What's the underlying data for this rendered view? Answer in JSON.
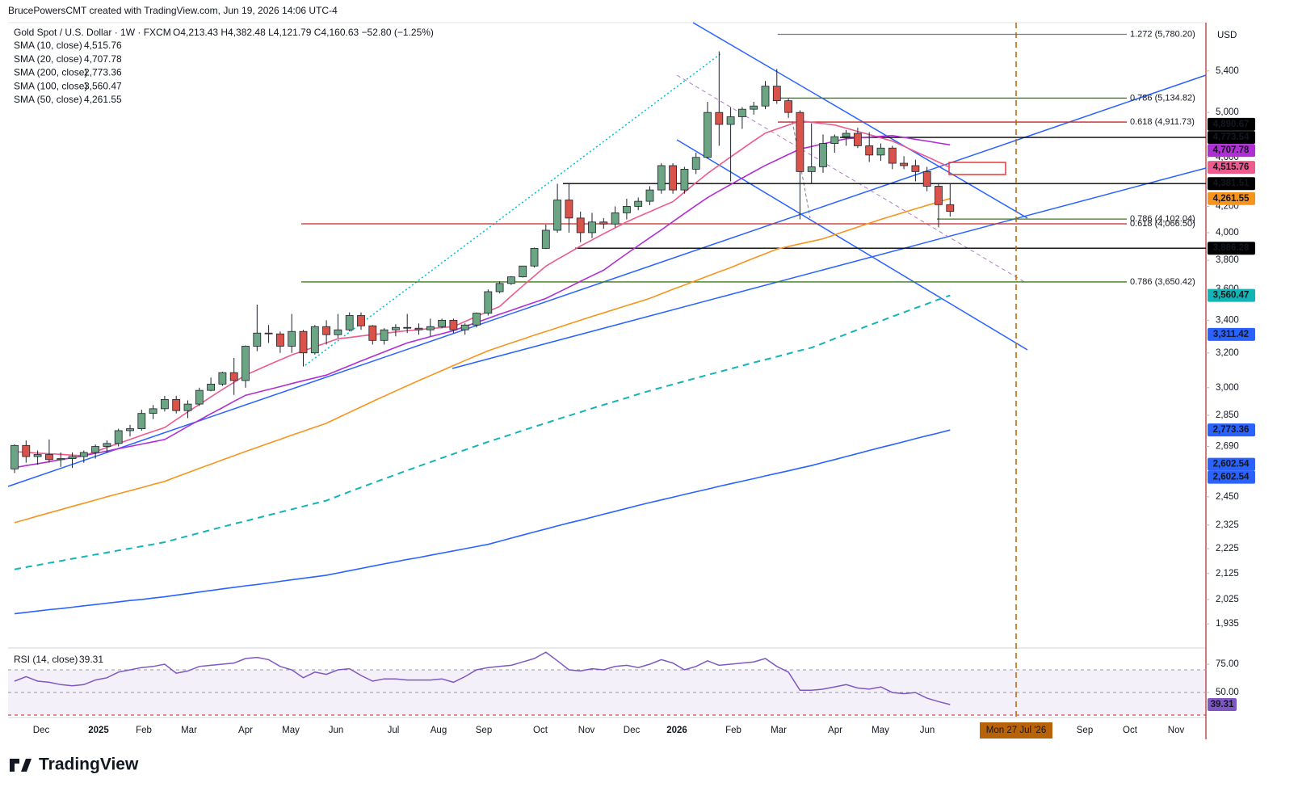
{
  "attribution": "BrucePowersCMT created with TradingView.com, Jun 19, 2026 14:06 UTC-4",
  "logo": "TradingView",
  "chart_data": {
    "type": "candlestick",
    "title": "Gold Spot / U.S. Dollar · 1W · FXCM",
    "ohlc_text": "O4,213.43 H4,382.48 L4,121.79 C4,160.63 −52.80 (−1.25%)",
    "currency": "USD",
    "log_scale": true,
    "up_color": "#6ba583",
    "down_color": "#d9534a",
    "candles": [
      [
        2580,
        2700,
        2560,
        2695
      ],
      [
        2695,
        2720,
        2610,
        2640
      ],
      [
        2640,
        2670,
        2600,
        2650
      ],
      [
        2650,
        2725,
        2610,
        2625
      ],
      [
        2625,
        2660,
        2590,
        2630
      ],
      [
        2630,
        2660,
        2585,
        2640
      ],
      [
        2640,
        2670,
        2610,
        2660
      ],
      [
        2660,
        2700,
        2630,
        2690
      ],
      [
        2690,
        2720,
        2660,
        2705
      ],
      [
        2705,
        2780,
        2690,
        2770
      ],
      [
        2770,
        2800,
        2740,
        2780
      ],
      [
        2780,
        2880,
        2770,
        2860
      ],
      [
        2860,
        2905,
        2830,
        2885
      ],
      [
        2885,
        2955,
        2870,
        2935
      ],
      [
        2935,
        2955,
        2860,
        2875
      ],
      [
        2875,
        2930,
        2835,
        2910
      ],
      [
        2910,
        3000,
        2900,
        2985
      ],
      [
        2985,
        3057,
        2980,
        3020
      ],
      [
        3020,
        3090,
        3010,
        3085
      ],
      [
        3085,
        3170,
        2960,
        3040
      ],
      [
        3040,
        3245,
        3000,
        3240
      ],
      [
        3240,
        3500,
        3210,
        3320
      ],
      [
        3320,
        3370,
        3260,
        3315
      ],
      [
        3315,
        3330,
        3200,
        3240
      ],
      [
        3240,
        3440,
        3200,
        3330
      ],
      [
        3330,
        3340,
        3120,
        3200
      ],
      [
        3200,
        3370,
        3190,
        3360
      ],
      [
        3360,
        3400,
        3250,
        3310
      ],
      [
        3310,
        3440,
        3290,
        3340
      ],
      [
        3340,
        3450,
        3330,
        3430
      ],
      [
        3430,
        3450,
        3340,
        3365
      ],
      [
        3365,
        3370,
        3250,
        3275
      ],
      [
        3275,
        3350,
        3250,
        3340
      ],
      [
        3340,
        3375,
        3300,
        3355
      ],
      [
        3355,
        3440,
        3320,
        3350
      ],
      [
        3350,
        3380,
        3310,
        3340
      ],
      [
        3340,
        3410,
        3300,
        3360
      ],
      [
        3360,
        3410,
        3350,
        3400
      ],
      [
        3400,
        3410,
        3320,
        3340
      ],
      [
        3340,
        3380,
        3310,
        3370
      ],
      [
        3370,
        3450,
        3355,
        3445
      ],
      [
        3445,
        3600,
        3430,
        3585
      ],
      [
        3585,
        3655,
        3575,
        3640
      ],
      [
        3640,
        3690,
        3630,
        3685
      ],
      [
        3685,
        3760,
        3680,
        3760
      ],
      [
        3760,
        3890,
        3750,
        3885
      ],
      [
        3885,
        4060,
        3880,
        4018
      ],
      [
        4018,
        4380,
        4000,
        4250
      ],
      [
        4250,
        4380,
        4000,
        4110
      ],
      [
        4110,
        4160,
        3930,
        4000
      ],
      [
        4000,
        4150,
        3960,
        4080
      ],
      [
        4080,
        4110,
        4030,
        4065
      ],
      [
        4065,
        4200,
        4040,
        4150
      ],
      [
        4150,
        4260,
        4100,
        4200
      ],
      [
        4200,
        4270,
        4170,
        4240
      ],
      [
        4240,
        4360,
        4210,
        4330
      ],
      [
        4330,
        4550,
        4300,
        4530
      ],
      [
        4530,
        4550,
        4300,
        4330
      ],
      [
        4330,
        4520,
        4300,
        4500
      ],
      [
        4500,
        4640,
        4460,
        4600
      ],
      [
        4600,
        5100,
        4590,
        5000
      ],
      [
        5000,
        5600,
        4700,
        4890
      ],
      [
        4890,
        5050,
        4400,
        4960
      ],
      [
        4960,
        5050,
        4850,
        5030
      ],
      [
        5030,
        5100,
        4980,
        5060
      ],
      [
        5060,
        5300,
        5030,
        5250
      ],
      [
        5250,
        5420,
        5080,
        5110
      ],
      [
        5110,
        5130,
        4950,
        5000
      ],
      [
        5000,
        5020,
        4100,
        4480
      ],
      [
        4480,
        4900,
        4380,
        4520
      ],
      [
        4520,
        4800,
        4470,
        4720
      ],
      [
        4720,
        4800,
        4640,
        4780
      ],
      [
        4780,
        4840,
        4700,
        4810
      ],
      [
        4810,
        4860,
        4680,
        4700
      ],
      [
        4700,
        4820,
        4560,
        4620
      ],
      [
        4620,
        4720,
        4570,
        4680
      ],
      [
        4680,
        4700,
        4500,
        4550
      ],
      [
        4550,
        4610,
        4500,
        4530
      ],
      [
        4530,
        4580,
        4400,
        4480
      ],
      [
        4480,
        4520,
        4320,
        4360
      ],
      [
        4360,
        4380,
        4040,
        4213.43
      ],
      [
        4213.43,
        4382.48,
        4121.79,
        4160.63
      ]
    ],
    "ylim": [
      1856,
      5907
    ],
    "yticks": [
      {
        "value": 5400,
        "label": "5,400"
      },
      {
        "value": 5000,
        "label": "5,000"
      },
      {
        "value": 4600,
        "label": "4,600"
      },
      {
        "value": 4200,
        "label": "4,200"
      },
      {
        "value": 4000,
        "label": "4,000"
      },
      {
        "value": 3800,
        "label": "3,800"
      },
      {
        "value": 3600,
        "label": "3,600"
      },
      {
        "value": 3400,
        "label": "3,400"
      },
      {
        "value": 3200,
        "label": "3,200"
      },
      {
        "value": 3000,
        "label": "3,000"
      },
      {
        "value": 2850,
        "label": "2,850"
      },
      {
        "value": 2690,
        "label": "2,690"
      },
      {
        "value": 2450,
        "label": "2,450"
      },
      {
        "value": 2325,
        "label": "2,325"
      },
      {
        "value": 2225,
        "label": "2,225"
      },
      {
        "value": 2125,
        "label": "2,125"
      },
      {
        "value": 2025,
        "label": "2,025"
      },
      {
        "value": 1935,
        "label": "1,935"
      }
    ],
    "series": [
      {
        "name": "SMA (10, close)",
        "color": "#ec5b8c",
        "style": "solid",
        "last_label": "4,515.76",
        "values": [
          2664,
          2661,
          2657,
          2654,
          2651,
          2647,
          2644,
          2664,
          2685,
          2705,
          2725,
          2746,
          2766,
          2786,
          2827,
          2868,
          2908,
          2949,
          2990,
          3030,
          3071,
          3100,
          3130,
          3159,
          3188,
          3212,
          3236,
          3261,
          3285,
          3293,
          3302,
          3310,
          3318,
          3327,
          3335,
          3341,
          3348,
          3354,
          3360,
          3392,
          3424,
          3456,
          3488,
          3556,
          3624,
          3691,
          3759,
          3807,
          3854,
          3902,
          3947,
          3992,
          4036,
          4081,
          4120,
          4159,
          4198,
          4237,
          4313,
          4389,
          4465,
          4534,
          4604,
          4673,
          4743,
          4812,
          4849,
          4885,
          4922,
          4910,
          4897,
          4885,
          4856,
          4827,
          4799,
          4770,
          4741,
          4696,
          4650,
          4605,
          4560,
          4515.76
        ]
      },
      {
        "name": "SMA (20, close)",
        "color": "#b02fd4",
        "style": "solid",
        "last_label": "4,707.78",
        "values": [
          2586,
          2596,
          2605,
          2615,
          2625,
          2634,
          2644,
          2656,
          2667,
          2679,
          2690,
          2702,
          2713,
          2725,
          2758,
          2792,
          2825,
          2858,
          2891,
          2925,
          2958,
          2974,
          2990,
          3006,
          3023,
          3039,
          3055,
          3071,
          3098,
          3125,
          3152,
          3179,
          3206,
          3233,
          3260,
          3279,
          3298,
          3316,
          3335,
          3361,
          3386,
          3412,
          3438,
          3463,
          3489,
          3514,
          3540,
          3578,
          3616,
          3655,
          3693,
          3731,
          3789,
          3847,
          3905,
          3963,
          4021,
          4083,
          4145,
          4207,
          4269,
          4322,
          4374,
          4427,
          4479,
          4532,
          4578,
          4625,
          4671,
          4694,
          4717,
          4739,
          4762,
          4769,
          4776,
          4783,
          4790,
          4774,
          4757,
          4741,
          4724,
          4707.78
        ]
      },
      {
        "name": "SMA (200, close)",
        "color": "#2962ff",
        "style": "solid",
        "last_label": "2,773.36",
        "values": [
          1972,
          1977,
          1982,
          1987,
          1991,
          1996,
          2001,
          2006,
          2011,
          2016,
          2021,
          2025,
          2030,
          2035,
          2041,
          2047,
          2053,
          2059,
          2065,
          2071,
          2077,
          2082,
          2088,
          2094,
          2100,
          2106,
          2112,
          2118,
          2127,
          2136,
          2145,
          2154,
          2163,
          2172,
          2181,
          2189,
          2198,
          2207,
          2216,
          2225,
          2234,
          2243,
          2256,
          2269,
          2282,
          2295,
          2308,
          2321,
          2334,
          2346,
          2359,
          2372,
          2385,
          2398,
          2411,
          2424,
          2436,
          2448,
          2461,
          2473,
          2485,
          2498,
          2510,
          2522,
          2534,
          2547,
          2559,
          2571,
          2584,
          2596,
          2611,
          2625,
          2640,
          2655,
          2670,
          2685,
          2699,
          2714,
          2729,
          2744,
          2758,
          2773.36
        ]
      },
      {
        "name": "SMA (100, close)",
        "color": "#12b5b5",
        "style": "dashed",
        "last_label": "3,560.47",
        "values": [
          2141,
          2150,
          2158,
          2167,
          2175,
          2184,
          2192,
          2201,
          2209,
          2218,
          2226,
          2235,
          2243,
          2252,
          2265,
          2278,
          2291,
          2304,
          2317,
          2330,
          2342,
          2355,
          2368,
          2381,
          2394,
          2407,
          2420,
          2433,
          2453,
          2473,
          2493,
          2513,
          2533,
          2553,
          2573,
          2593,
          2613,
          2633,
          2653,
          2673,
          2693,
          2713,
          2732,
          2751,
          2771,
          2790,
          2809,
          2829,
          2848,
          2867,
          2887,
          2906,
          2925,
          2944,
          2964,
          2983,
          3001,
          3018,
          3036,
          3054,
          3072,
          3089,
          3107,
          3125,
          3143,
          3160,
          3178,
          3196,
          3214,
          3231,
          3258,
          3286,
          3313,
          3341,
          3368,
          3395,
          3423,
          3450,
          3478,
          3505,
          3533,
          3560.47
        ]
      },
      {
        "name": "SMA (50, close)",
        "color": "#f7941d",
        "style": "solid",
        "last_label": "4,261.55",
        "values": [
          2335,
          2349,
          2364,
          2378,
          2392,
          2407,
          2421,
          2435,
          2450,
          2464,
          2478,
          2492,
          2507,
          2521,
          2542,
          2562,
          2583,
          2603,
          2624,
          2644,
          2665,
          2685,
          2706,
          2726,
          2747,
          2767,
          2788,
          2808,
          2837,
          2866,
          2895,
          2924,
          2953,
          2982,
          3011,
          3040,
          3068,
          3097,
          3126,
          3155,
          3184,
          3213,
          3236,
          3260,
          3283,
          3307,
          3330,
          3353,
          3377,
          3400,
          3424,
          3447,
          3470,
          3494,
          3517,
          3541,
          3571,
          3601,
          3630,
          3660,
          3690,
          3720,
          3749,
          3782,
          3815,
          3847,
          3880,
          3899,
          3918,
          3936,
          3955,
          3984,
          4013,
          4042,
          4071,
          4100,
          4127,
          4154,
          4181,
          4208,
          4235,
          4261.55
        ]
      }
    ],
    "fib_levels": [
      {
        "value": 5780.2,
        "label": "1.272 (5,780.20)",
        "color": "#787b86"
      },
      {
        "value": 5134.82,
        "label": "0.786 (5,134.82)",
        "color": "#3d7a1e"
      },
      {
        "value": 4911.73,
        "label": "0.618 (4,911.73)",
        "color": "#c62828"
      },
      {
        "value": 4102.04,
        "label": "0.786 (4,102.04)",
        "color": "#3d7a1e"
      },
      {
        "value": 4066.5,
        "label": "0.618 (4,066.50)",
        "color": "#c62828"
      },
      {
        "value": 3650.42,
        "label": "0.786 (3,650.42)",
        "color": "#3d7a1e"
      }
    ],
    "price_labels": [
      {
        "value": 4890.67,
        "label": "4,890.67",
        "color": "#000000",
        "line": false
      },
      {
        "value": 4773.54,
        "label": "4,773.54",
        "color": "#000000",
        "line": true
      },
      {
        "value": 4707.78,
        "label": "4,707.78",
        "color": "#b02fd4",
        "line": false
      },
      {
        "value": 4515.76,
        "label": "4,515.76",
        "color": "#ec5b8c",
        "line": false
      },
      {
        "value": 4381.51,
        "label": "4,381.51",
        "color": "#000000",
        "line": true
      },
      {
        "value": 4261.55,
        "label": "4,261.55",
        "color": "#f7941d",
        "line": false
      },
      {
        "value": 3886.28,
        "label": "3,886.28",
        "color": "#000000",
        "line": true
      },
      {
        "value": 3560.47,
        "label": "3,560.47",
        "color": "#12b5b5",
        "line": false
      },
      {
        "value": 3311.42,
        "label": "3,311.42",
        "color": "#2962ff",
        "line": false
      },
      {
        "value": 2773.36,
        "label": "2,773.36",
        "color": "#2962ff",
        "line": false
      },
      {
        "value": 2602.54,
        "label": "2,602.54",
        "color": "#2962ff",
        "line": false
      },
      {
        "value": 2602.54,
        "label": "2,602.54",
        "color": "#2962ff",
        "line": false
      }
    ],
    "time_labels": [
      "Dec",
      "2025",
      "Feb",
      "Mar",
      "Apr",
      "May",
      "Jun",
      "Jul",
      "Aug",
      "Sep",
      "Oct",
      "Nov",
      "Dec",
      "2026",
      "Feb",
      "Mar",
      "Apr",
      "May",
      "Jun",
      "Sep",
      "Oct",
      "Nov"
    ],
    "marker": {
      "label": "Mon 27 Jul '26",
      "color": "#b8620a"
    },
    "rsi": {
      "name": "RSI (14, close)",
      "color": "#7e57c2",
      "last_label": "39.31",
      "ylim": [
        27.9,
        88.6
      ],
      "yticks": [
        {
          "value": 75,
          "label": "75.00"
        },
        {
          "value": 50,
          "label": "50.00"
        }
      ],
      "bands": {
        "upper": 70,
        "middle": 50,
        "lower": 30
      },
      "values": [
        60,
        64,
        60,
        59,
        57,
        56,
        57,
        61,
        63,
        68,
        70,
        72,
        73,
        75,
        67,
        69,
        73,
        74,
        75,
        76,
        80,
        81,
        79,
        73,
        70,
        63,
        68,
        66,
        70,
        71,
        65,
        60,
        62,
        62,
        61,
        61,
        61,
        62,
        59,
        64,
        70,
        72,
        73,
        74,
        77,
        80,
        85.7,
        78,
        70,
        69,
        71,
        70,
        73,
        74,
        72,
        75,
        79,
        76,
        70,
        73,
        78,
        74,
        75,
        76,
        77,
        80,
        73,
        68,
        52,
        52,
        53,
        55,
        57,
        54,
        53,
        55,
        50,
        49,
        50,
        45,
        42,
        39.31
      ]
    }
  }
}
